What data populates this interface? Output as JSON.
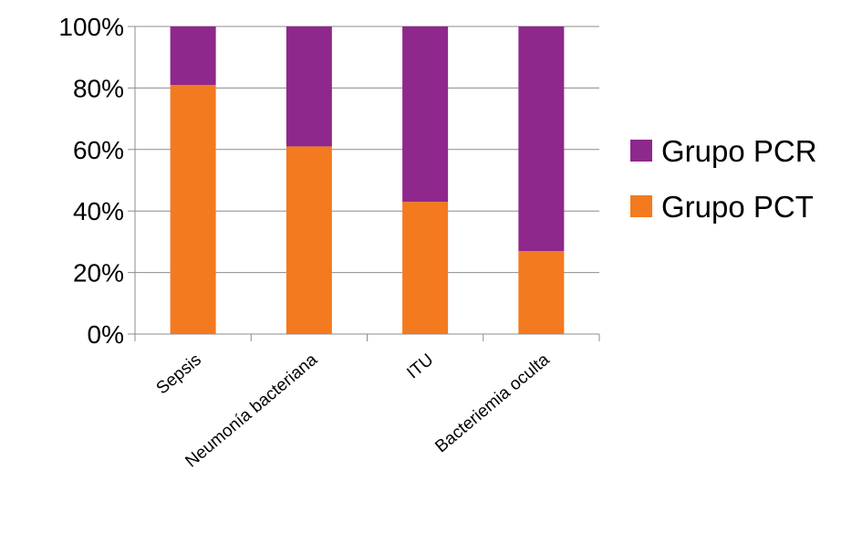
{
  "chart_data": {
    "type": "bar",
    "stacked": true,
    "categories": [
      "Sepsis",
      "Neumonía bacteriana",
      "ITU",
      "Bacteriemia oculta"
    ],
    "series": [
      {
        "name": "Grupo PCT",
        "color": "#F47A20",
        "values": [
          81,
          61,
          43,
          27
        ]
      },
      {
        "name": "Grupo PCR",
        "color": "#8E288C",
        "values": [
          19,
          39,
          57,
          73
        ]
      }
    ],
    "y_ticks": [
      "0%",
      "20%",
      "40%",
      "60%",
      "80%",
      "100%"
    ],
    "ylim": [
      0,
      100
    ],
    "grid": true,
    "legend_position": "right",
    "legend_order": [
      "Grupo PCR",
      "Grupo PCT"
    ]
  }
}
